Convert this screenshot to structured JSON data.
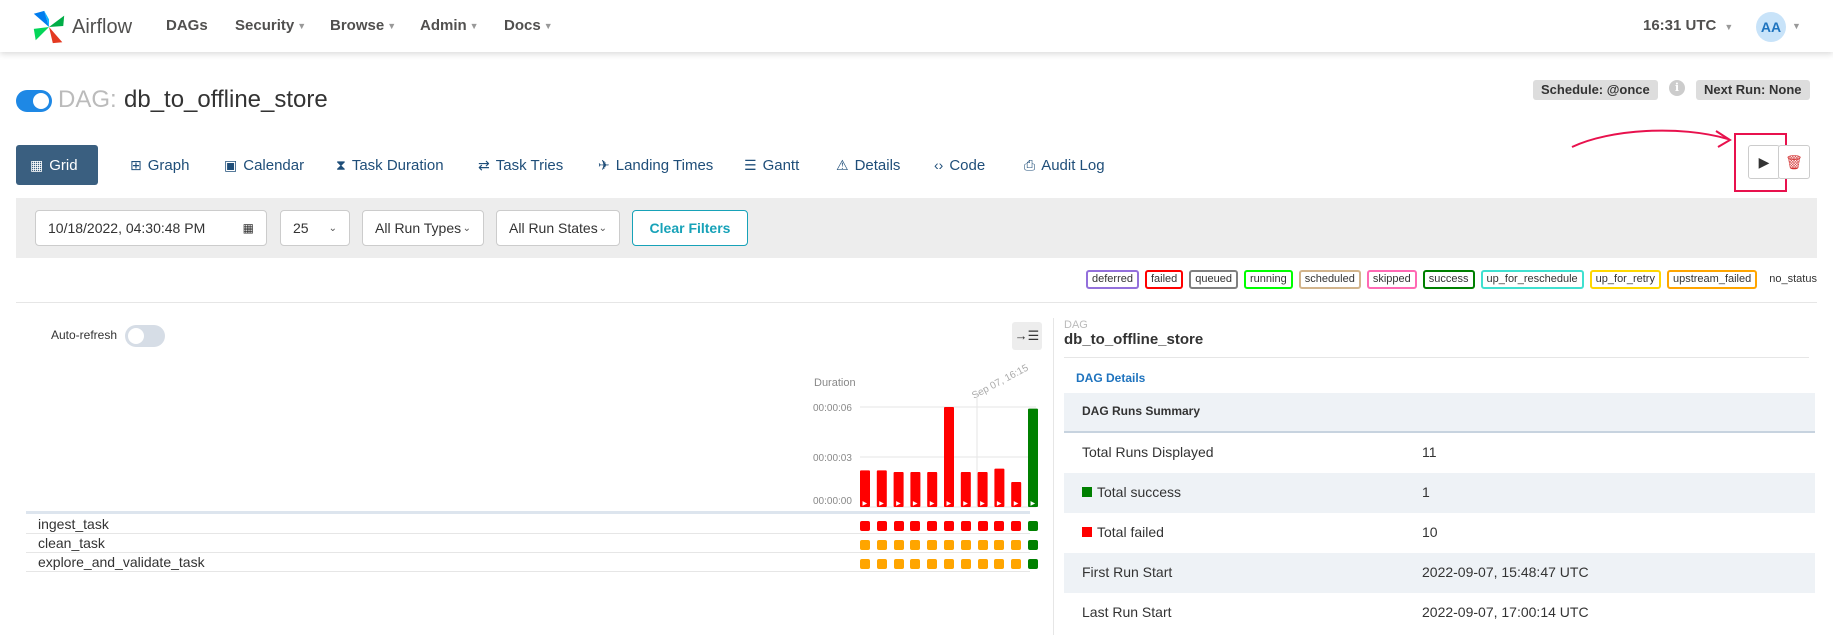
{
  "navbar": {
    "brand": "Airflow",
    "items": [
      "DAGs",
      "Security",
      "Browse",
      "Admin",
      "Docs"
    ],
    "clock": "16:31 UTC",
    "avatar": "AA"
  },
  "dag": {
    "prefix": "DAG:",
    "name": "db_to_offline_store",
    "paused": false,
    "schedule": "Schedule: @once",
    "next_run": "Next Run: None"
  },
  "tabs": [
    {
      "label": "Grid",
      "icon": "grid-icon",
      "active": true
    },
    {
      "label": "Graph",
      "icon": "graph-icon"
    },
    {
      "label": "Calendar",
      "icon": "calendar-icon"
    },
    {
      "label": "Task Duration",
      "icon": "hourglass-icon"
    },
    {
      "label": "Task Tries",
      "icon": "retry-icon"
    },
    {
      "label": "Landing Times",
      "icon": "plane-landing-icon"
    },
    {
      "label": "Gantt",
      "icon": "gantt-icon"
    },
    {
      "label": "Details",
      "icon": "warning-triangle-icon"
    },
    {
      "label": "Code",
      "icon": "code-icon"
    },
    {
      "label": "Audit Log",
      "icon": "file-search-icon"
    }
  ],
  "actions": {
    "trigger": "play-icon",
    "delete": "trash-icon"
  },
  "filters": {
    "base_date": "10/18/2022, 04:30:48 PM",
    "num_runs": "25",
    "run_type": "All Run Types",
    "run_state": "All Run States",
    "clear_label": "Clear Filters"
  },
  "legend": [
    {
      "label": "deferred",
      "color": "#9370db"
    },
    {
      "label": "failed",
      "color": "#ff0000"
    },
    {
      "label": "queued",
      "color": "#808080"
    },
    {
      "label": "running",
      "color": "#00ff00"
    },
    {
      "label": "scheduled",
      "color": "#d2b48c"
    },
    {
      "label": "skipped",
      "color": "#ff69b4"
    },
    {
      "label": "success",
      "color": "#008000"
    },
    {
      "label": "up_for_reschedule",
      "color": "#40e0d0"
    },
    {
      "label": "up_for_retry",
      "color": "#ffd700"
    },
    {
      "label": "upstream_failed",
      "color": "#ffa500"
    },
    {
      "label": "no_status",
      "color": "none"
    }
  ],
  "grid": {
    "auto_refresh_label": "Auto-refresh",
    "auto_refresh": false,
    "duration_label": "Duration",
    "date_label": "Sep 07, 16:15",
    "y_ticks": [
      "00:00:06",
      "00:00:03",
      "00:00:00"
    ],
    "tasks": [
      "ingest_task",
      "clean_task",
      "explore_and_validate_task"
    ]
  },
  "chart_data": {
    "type": "bar",
    "ylabel": "Duration",
    "ylim_seconds": [
      0,
      6
    ],
    "durations_seconds": [
      2.2,
      2.2,
      2.1,
      2.1,
      2.1,
      6.0,
      2.1,
      2.1,
      2.3,
      1.5,
      5.9
    ],
    "run_states": [
      "failed",
      "failed",
      "failed",
      "failed",
      "failed",
      "failed",
      "failed",
      "failed",
      "failed",
      "failed",
      "success"
    ],
    "task_states": [
      [
        "failed",
        "failed",
        "failed",
        "failed",
        "failed",
        "failed",
        "failed",
        "failed",
        "failed",
        "failed",
        "success"
      ],
      [
        "upstream_failed",
        "upstream_failed",
        "upstream_failed",
        "upstream_failed",
        "upstream_failed",
        "upstream_failed",
        "upstream_failed",
        "upstream_failed",
        "upstream_failed",
        "upstream_failed",
        "success"
      ],
      [
        "upstream_failed",
        "upstream_failed",
        "upstream_failed",
        "upstream_failed",
        "upstream_failed",
        "upstream_failed",
        "upstream_failed",
        "upstream_failed",
        "upstream_failed",
        "upstream_failed",
        "success"
      ]
    ]
  },
  "details": {
    "small_label": "DAG",
    "title": "db_to_offline_store",
    "link": "DAG Details",
    "summary_header": "DAG Runs Summary",
    "rows": [
      {
        "key": "Total Runs Displayed",
        "value": "11"
      },
      {
        "key": "Total success",
        "value": "1",
        "dot": "#008000"
      },
      {
        "key": "Total failed",
        "value": "10",
        "dot": "#ff0000"
      },
      {
        "key": "First Run Start",
        "value": "2022-09-07, 15:48:47 UTC"
      },
      {
        "key": "Last Run Start",
        "value": "2022-09-07, 17:00:14 UTC"
      }
    ]
  }
}
